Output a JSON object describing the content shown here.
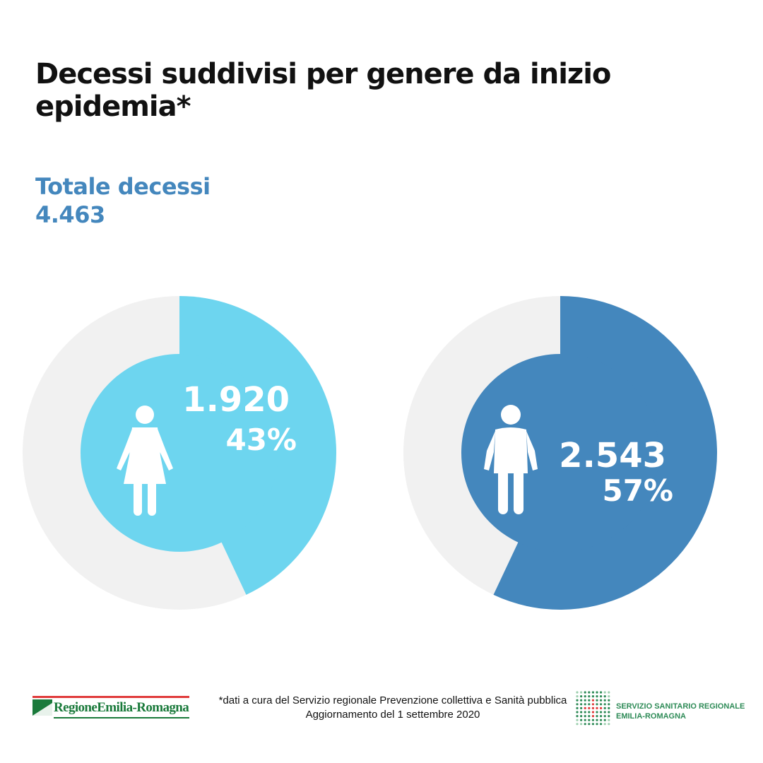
{
  "title": "Decessi suddivisi per genere da inizio epidemia*",
  "total": {
    "label": "Totale decessi",
    "value": "4.463"
  },
  "chart_data": [
    {
      "type": "pie",
      "category": "female",
      "icon": "woman-icon",
      "count": 1920,
      "count_label": "1.920",
      "percent": 43,
      "percent_label": "43%",
      "color": "#6dd5ef",
      "track_color": "#f1f1f1"
    },
    {
      "type": "pie",
      "category": "male",
      "icon": "man-icon",
      "count": 2543,
      "count_label": "2.543",
      "percent": 57,
      "percent_label": "57%",
      "color": "#4487bd",
      "track_color": "#f1f1f1"
    }
  ],
  "footer": {
    "note_line1": "*dati a cura del Servizio regionale Prevenzione collettiva e Sanità pubblica",
    "note_line2": "Aggiornamento del 1 settembre 2020",
    "logo_left": "RegioneEmilia-Romagna",
    "logo_right_line1": "SERVIZIO SANITARIO REGIONALE",
    "logo_right_line2": "EMILIA-ROMAGNA"
  },
  "colors": {
    "accent": "#4487bd",
    "light": "#6dd5ef",
    "green": "#1a7a3b",
    "red": "#e03a3a"
  }
}
